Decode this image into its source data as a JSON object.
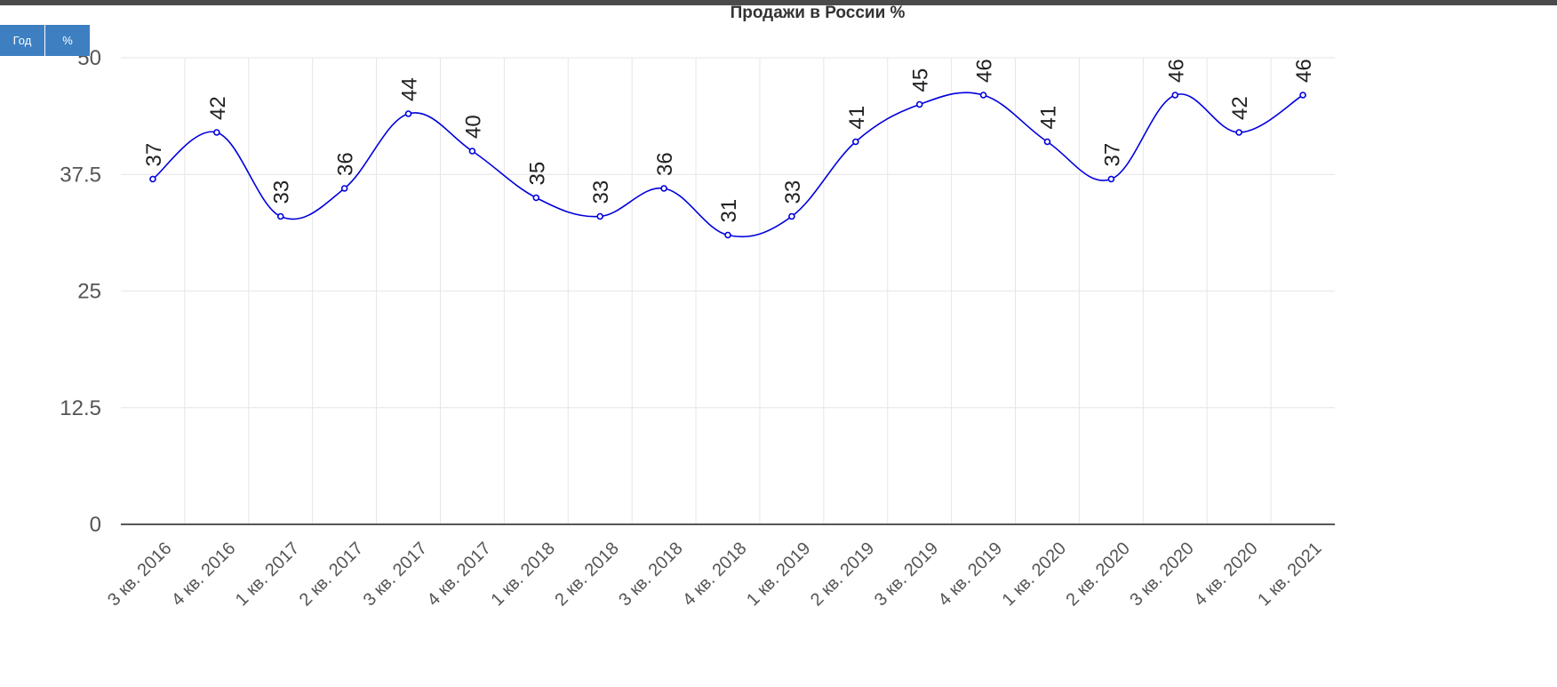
{
  "toolbar": {
    "year_label": "Год",
    "percent_label": "%"
  },
  "chart_data": {
    "type": "line",
    "title": "Продажи в России %",
    "xlabel": "",
    "ylabel": "",
    "ylim": [
      0,
      50
    ],
    "yticks": [
      "0",
      "12.5",
      "25",
      "37.5",
      "50"
    ],
    "grid": true,
    "line_color": "#0000dd",
    "categories": [
      "3 кв. 2016",
      "4 кв. 2016",
      "1 кв. 2017",
      "2 кв. 2017",
      "3 кв. 2017",
      "4 кв. 2017",
      "1 кв. 2018",
      "2 кв. 2018",
      "3 кв. 2018",
      "4 кв. 2018",
      "1 кв. 2019",
      "2 кв. 2019",
      "3 кв. 2019",
      "4 кв. 2019",
      "1 кв. 2020",
      "2 кв. 2020",
      "3 кв. 2020",
      "4 кв. 2020",
      "1 кв. 2021"
    ],
    "series": [
      {
        "values": [
          37,
          42,
          33,
          36,
          44,
          40,
          35,
          33,
          36,
          31,
          33,
          41,
          45,
          46,
          41,
          37,
          46,
          42,
          46
        ]
      }
    ]
  }
}
